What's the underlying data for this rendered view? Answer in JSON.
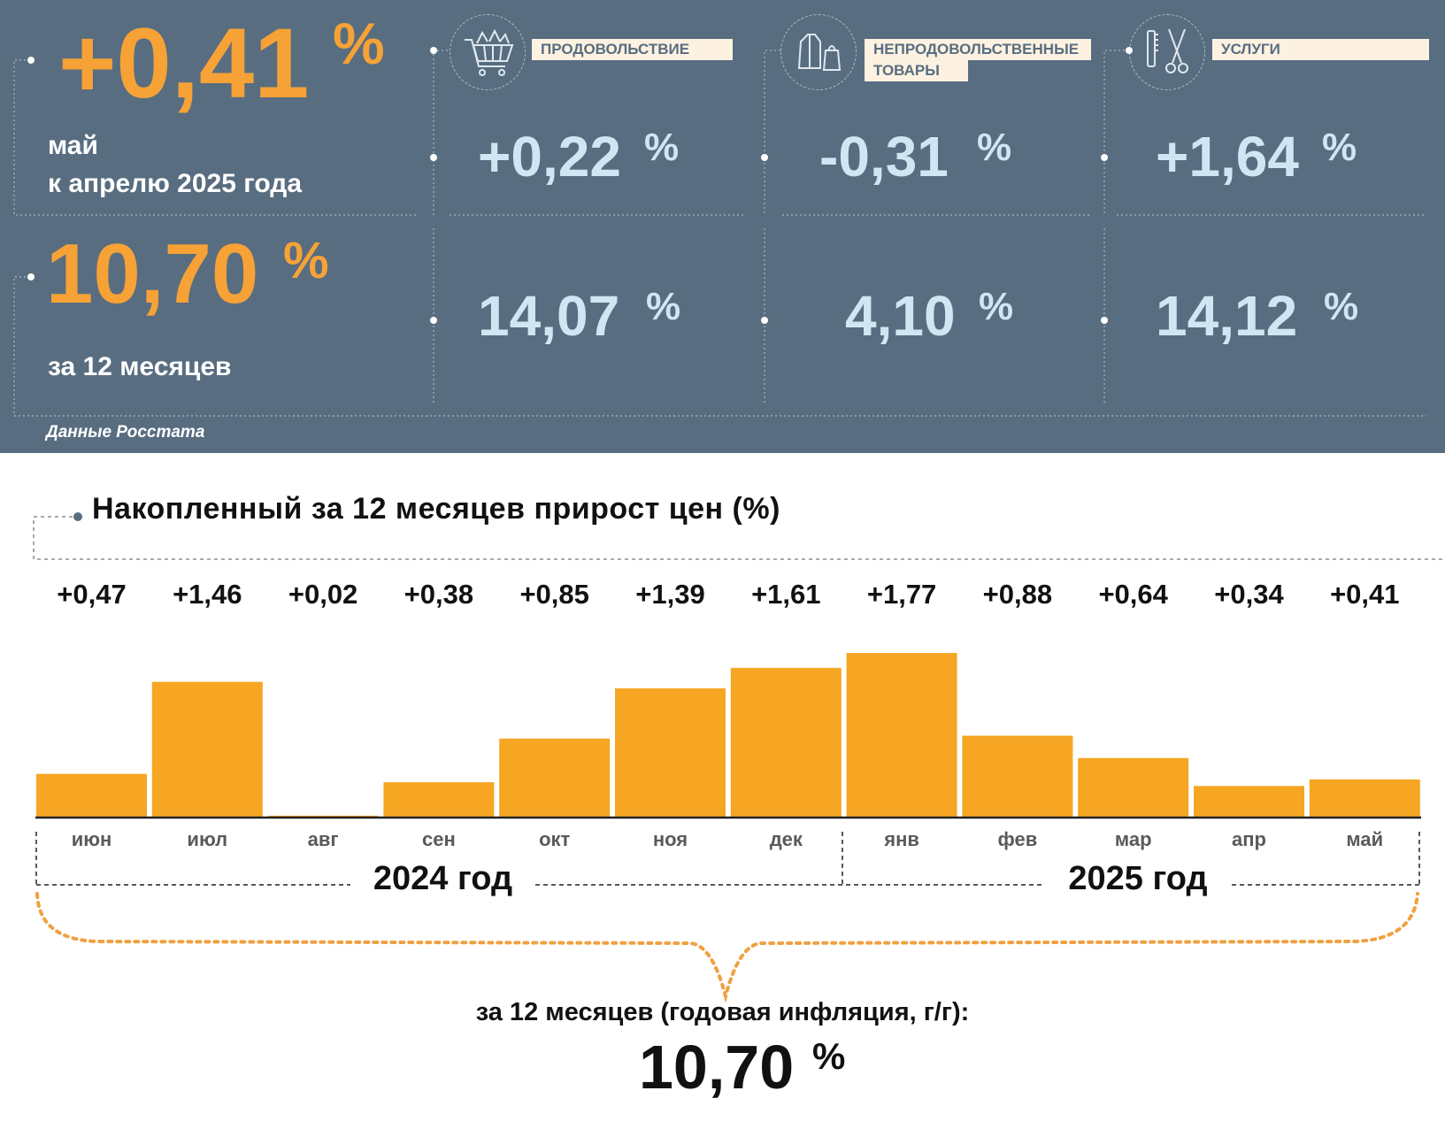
{
  "header": {
    "monthly_value": "+0,41",
    "percent_sign": "%",
    "monthly_caption_line1": "май",
    "monthly_caption_line2": "к апрелю 2025 года",
    "annual_value": "10,70",
    "annual_caption": "за 12 месяцев",
    "source": "Данные Росстата"
  },
  "categories": [
    {
      "label_line1": "ПРОДОВОЛЬСТВИЕ",
      "label_line2": "",
      "icon": "shopping-cart-icon",
      "monthly": "+0,22",
      "annual": "14,07"
    },
    {
      "label_line1": "НЕПРОДОВОЛЬСТВЕННЫЕ",
      "label_line2": "ТОВАРЫ",
      "icon": "clothing-icon",
      "monthly": "-0,31",
      "annual": "4,10"
    },
    {
      "label_line1": "УСЛУГИ",
      "label_line2": "",
      "icon": "scissors-comb-icon",
      "monthly": "+1,64",
      "annual": "14,12"
    }
  ],
  "chart_data": {
    "type": "bar",
    "title": "Накопленный за 12 месяцев прирост цен (%)",
    "categories": [
      "июн",
      "июл",
      "авг",
      "сен",
      "окт",
      "ноя",
      "дек",
      "янв",
      "фев",
      "мар",
      "апр",
      "май"
    ],
    "values": [
      0.47,
      1.46,
      0.02,
      0.38,
      0.85,
      1.39,
      1.61,
      1.77,
      0.88,
      0.64,
      0.34,
      0.41
    ],
    "value_labels": [
      "+0,47",
      "+1,46",
      "+0,02",
      "+0,38",
      "+0,85",
      "+1,39",
      "+1,61",
      "+1,77",
      "+0,88",
      "+0,64",
      "+0,34",
      "+0,41"
    ],
    "year_groups": [
      "2024 год",
      "2025 год"
    ],
    "bar_color": "#f6a623",
    "ylim": [
      0,
      1.77
    ],
    "grid": false
  },
  "summary": {
    "caption": "за 12 месяцев (годовая инфляция, г/г):",
    "value": "10,70",
    "percent_sign": "%"
  },
  "colors": {
    "panel": "#586d80",
    "accent": "#f6a236",
    "value_light": "#cfe6f3",
    "brace": "#f0a040"
  }
}
